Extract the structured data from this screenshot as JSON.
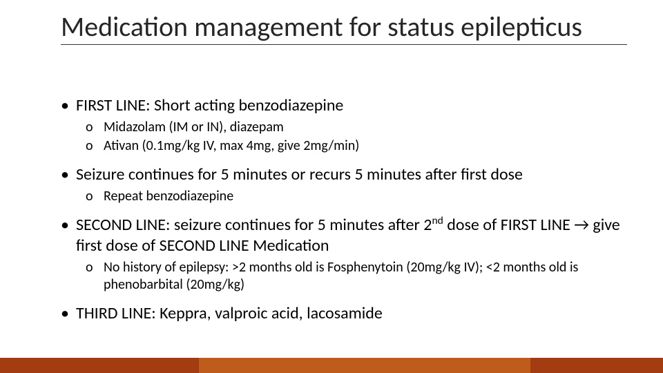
{
  "title": "Medication management for status epilepticus",
  "title_fontsize": 40,
  "title_color": "#262626",
  "title_underline_color": "#333333",
  "body_level1_fontsize": 24,
  "body_level2_fontsize": 20,
  "background_color": "#ffffff",
  "sections": [
    {
      "text": "FIRST LINE: Short acting benzodiazepine",
      "sub": [
        "Midazolam (IM or IN), diazepam",
        "Ativan (0.1mg/kg IV, max 4mg, give 2mg/min)"
      ]
    },
    {
      "text": "Seizure continues for 5 minutes or recurs 5 minutes after first dose",
      "sub": [
        "Repeat benzodiazepine"
      ]
    },
    {
      "text_html": "SECOND LINE: seizure continues for 5 minutes after 2<sup>nd</sup> dose of FIRST LINE → give first dose of SECOND LINE Medication",
      "text": "SECOND LINE: seizure continues for 5 minutes after 2nd dose of FIRST LINE → give first dose of SECOND LINE Medication",
      "sub": [
        "No history of epilepsy: >2 months old is Fosphenytoin (20mg/kg IV); <2 months old is phenobarbital (20mg/kg)"
      ]
    },
    {
      "text": "THIRD LINE: Keppra, valproic acid, lacosamide",
      "sub": []
    }
  ],
  "bullet_level1_glyph": "•",
  "bullet_level2_glyph": "o",
  "footer_bar": {
    "height": 22,
    "segments": [
      {
        "color": "#a33d11",
        "width_pct": 30
      },
      {
        "color": "#bf5b1b",
        "width_pct": 50
      },
      {
        "color": "#a33d11",
        "width_pct": 20
      }
    ]
  }
}
